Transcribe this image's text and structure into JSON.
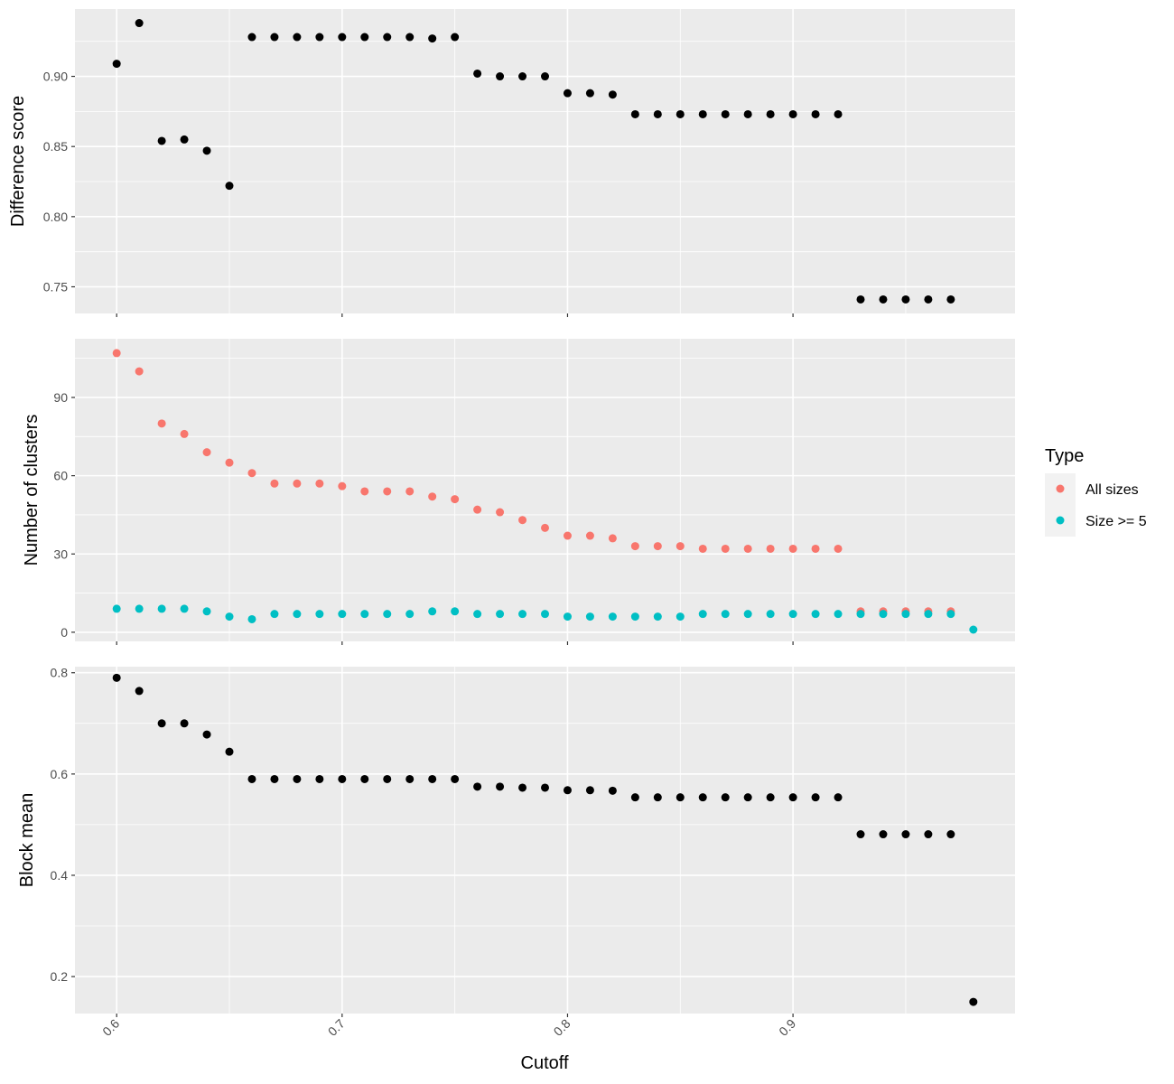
{
  "chart_data": {
    "type": "scatter",
    "xlabel": "Cutoff",
    "x_ticks": [
      "0.6",
      "0.7",
      "0.8",
      "0.9"
    ],
    "x_tick_values": [
      0.6,
      0.7,
      0.8,
      0.9
    ],
    "xlim": [
      0.5815,
      0.9985
    ],
    "panels": [
      {
        "ylabel": "Difference score",
        "ylim": [
          0.731,
          0.948
        ],
        "y_ticks": [
          "0.75",
          "0.80",
          "0.85",
          "0.90"
        ],
        "y_tick_values": [
          0.75,
          0.8,
          0.85,
          0.9
        ],
        "series": [
          {
            "color": "#000000",
            "x": [
              0.6,
              0.61,
              0.62,
              0.63,
              0.64,
              0.65,
              0.66,
              0.67,
              0.68,
              0.69,
              0.7,
              0.71,
              0.72,
              0.73,
              0.74,
              0.75,
              0.76,
              0.77,
              0.78,
              0.79,
              0.8,
              0.81,
              0.82,
              0.83,
              0.84,
              0.85,
              0.86,
              0.87,
              0.88,
              0.89,
              0.9,
              0.91,
              0.92,
              0.93,
              0.94,
              0.95,
              0.96,
              0.97
            ],
            "y": [
              0.909,
              0.938,
              0.854,
              0.855,
              0.847,
              0.822,
              0.928,
              0.928,
              0.928,
              0.928,
              0.928,
              0.928,
              0.928,
              0.928,
              0.927,
              0.928,
              0.902,
              0.9,
              0.9,
              0.9,
              0.888,
              0.888,
              0.887,
              0.873,
              0.873,
              0.873,
              0.873,
              0.873,
              0.873,
              0.873,
              0.873,
              0.873,
              0.873,
              0.741,
              0.741,
              0.741,
              0.741,
              0.741
            ]
          }
        ]
      },
      {
        "ylabel": "Number of clusters",
        "ylim": [
          -3.5,
          112.5
        ],
        "y_ticks": [
          "0",
          "30",
          "60",
          "90"
        ],
        "y_tick_values": [
          0,
          30,
          60,
          90
        ],
        "series": [
          {
            "name": "All sizes",
            "color": "#F8766D",
            "x": [
              0.6,
              0.61,
              0.62,
              0.63,
              0.64,
              0.65,
              0.66,
              0.67,
              0.68,
              0.69,
              0.7,
              0.71,
              0.72,
              0.73,
              0.74,
              0.75,
              0.76,
              0.77,
              0.78,
              0.79,
              0.8,
              0.81,
              0.82,
              0.83,
              0.84,
              0.85,
              0.86,
              0.87,
              0.88,
              0.89,
              0.9,
              0.91,
              0.92,
              0.93,
              0.94,
              0.95,
              0.96,
              0.97
            ],
            "y": [
              107,
              100,
              80,
              76,
              69,
              65,
              61,
              57,
              57,
              57,
              56,
              54,
              54,
              54,
              52,
              51,
              47,
              46,
              43,
              40,
              37,
              37,
              36,
              33,
              33,
              33,
              32,
              32,
              32,
              32,
              32,
              32,
              32,
              8,
              8,
              8,
              8,
              8
            ]
          },
          {
            "name": "Size >= 5",
            "color": "#00BFC4",
            "x": [
              0.6,
              0.61,
              0.62,
              0.63,
              0.64,
              0.65,
              0.66,
              0.67,
              0.68,
              0.69,
              0.7,
              0.71,
              0.72,
              0.73,
              0.74,
              0.75,
              0.76,
              0.77,
              0.78,
              0.79,
              0.8,
              0.81,
              0.82,
              0.83,
              0.84,
              0.85,
              0.86,
              0.87,
              0.88,
              0.89,
              0.9,
              0.91,
              0.92,
              0.93,
              0.94,
              0.95,
              0.96,
              0.97,
              0.98
            ],
            "y": [
              9,
              9,
              9,
              9,
              8,
              6,
              5,
              7,
              7,
              7,
              7,
              7,
              7,
              7,
              8,
              8,
              7,
              7,
              7,
              7,
              6,
              6,
              6,
              6,
              6,
              6,
              7,
              7,
              7,
              7,
              7,
              7,
              7,
              7,
              7,
              7,
              7,
              7,
              1
            ]
          }
        ]
      },
      {
        "ylabel": "Block mean",
        "ylim": [
          0.127,
          0.812
        ],
        "y_ticks": [
          "0.2",
          "0.4",
          "0.6",
          "0.8"
        ],
        "y_tick_values": [
          0.2,
          0.4,
          0.6,
          0.8
        ],
        "series": [
          {
            "color": "#000000",
            "x": [
              0.6,
              0.61,
              0.62,
              0.63,
              0.64,
              0.65,
              0.66,
              0.67,
              0.68,
              0.69,
              0.7,
              0.71,
              0.72,
              0.73,
              0.74,
              0.75,
              0.76,
              0.77,
              0.78,
              0.79,
              0.8,
              0.81,
              0.82,
              0.83,
              0.84,
              0.85,
              0.86,
              0.87,
              0.88,
              0.89,
              0.9,
              0.91,
              0.92,
              0.93,
              0.94,
              0.95,
              0.96,
              0.97,
              0.98
            ],
            "y": [
              0.79,
              0.764,
              0.7,
              0.7,
              0.678,
              0.644,
              0.59,
              0.59,
              0.59,
              0.59,
              0.59,
              0.59,
              0.59,
              0.59,
              0.59,
              0.59,
              0.575,
              0.575,
              0.573,
              0.573,
              0.568,
              0.568,
              0.567,
              0.554,
              0.554,
              0.554,
              0.554,
              0.554,
              0.554,
              0.554,
              0.554,
              0.554,
              0.554,
              0.481,
              0.481,
              0.481,
              0.481,
              0.481,
              0.15
            ]
          }
        ]
      }
    ],
    "legend": {
      "title": "Type",
      "position": "right",
      "entries": [
        {
          "label": "All sizes",
          "color": "#F8766D"
        },
        {
          "label": "Size >= 5",
          "color": "#00BFC4"
        }
      ]
    },
    "grid": true,
    "panel_background": "#EBEBEB",
    "grid_color": "#FFFFFF"
  }
}
